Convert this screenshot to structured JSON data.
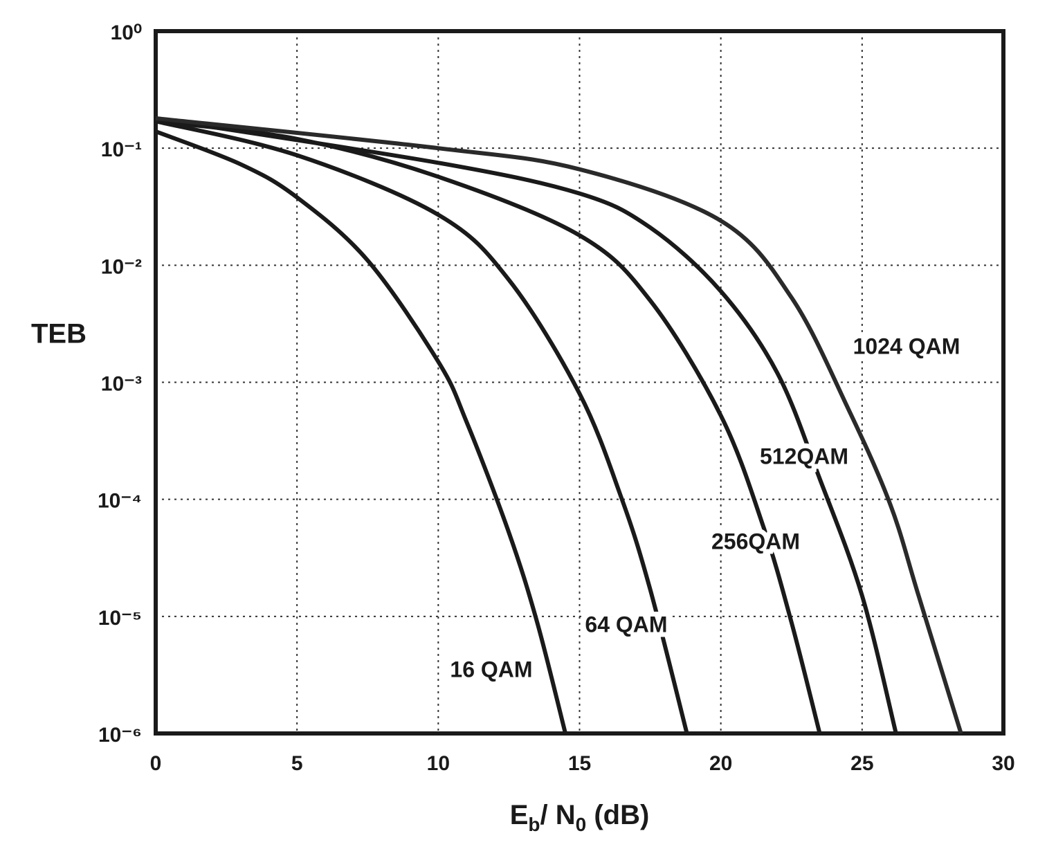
{
  "chart_data": {
    "type": "line",
    "ylabel": "TEB",
    "xlabel": [
      "E",
      "b",
      "/ N",
      "0",
      "  (dB)"
    ],
    "xlim": [
      0,
      30
    ],
    "xticks": [
      0,
      5,
      10,
      15,
      20,
      25,
      30
    ],
    "ylim": [
      1e-06,
      1
    ],
    "ylog": true,
    "yticks": [
      {
        "value": 1,
        "label": "10⁰"
      },
      {
        "value": 0.1,
        "label": "10⁻¹"
      },
      {
        "value": 0.01,
        "label": "10⁻²"
      },
      {
        "value": 0.001,
        "label": "10⁻³"
      },
      {
        "value": 0.0001,
        "label": "10⁻⁴"
      },
      {
        "value": 1e-05,
        "label": "10⁻⁵"
      },
      {
        "value": 1e-06,
        "label": "10⁻⁶"
      }
    ],
    "grid": true,
    "series": [
      {
        "name": "16 QAM",
        "color": "#1a1a1a",
        "x": [
          0,
          3,
          5,
          7.5,
          10,
          11,
          12.5,
          13.5,
          14.5
        ],
        "values": [
          0.139,
          0.073,
          0.038,
          0.011,
          0.0015,
          0.00046,
          5.2e-05,
          8.9e-06,
          1e-06
        ]
      },
      {
        "name": "64 QAM",
        "color": "#1a1a1a",
        "x": [
          0,
          5,
          10,
          12.5,
          15,
          16.5,
          17.5,
          18.8
        ],
        "values": [
          0.17,
          0.087,
          0.027,
          0.0075,
          0.0008,
          0.0001,
          1.7e-05,
          1e-06
        ]
      },
      {
        "name": "256QAM",
        "color": "#1a1a1a",
        "x": [
          0,
          5,
          10,
          15,
          17.5,
          20,
          21.5,
          22.5,
          23.5
        ],
        "values": [
          0.17,
          0.12,
          0.057,
          0.018,
          0.005,
          0.00052,
          5.9e-05,
          8.9e-06,
          1e-06
        ]
      },
      {
        "name": "512QAM",
        "color": "#1a1a1a",
        "x": [
          0,
          10,
          15,
          17.5,
          20,
          22,
          23.5,
          25,
          26.2
        ],
        "values": [
          0.18,
          0.075,
          0.041,
          0.021,
          0.006,
          0.0012,
          0.00015,
          1.5e-05,
          1e-06
        ]
      },
      {
        "name": "1024 QAM",
        "color": "#2a2a2a",
        "x": [
          0,
          10,
          15,
          20,
          22.5,
          24.5,
          26,
          27,
          28.5
        ],
        "values": [
          0.18,
          0.1,
          0.066,
          0.024,
          0.0053,
          0.0006,
          9e-05,
          1.5e-05,
          1e-06
        ]
      }
    ]
  }
}
